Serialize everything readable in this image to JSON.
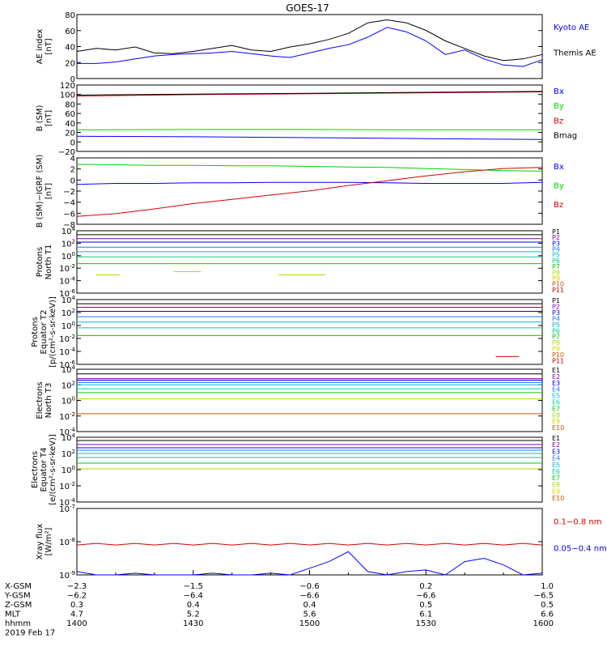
{
  "title": "GOES-17",
  "colors": {
    "black": "#000000",
    "blue": "#0000ff",
    "green": "#00d000",
    "red": "#d00000",
    "p_colors": [
      "#000000",
      "#8800aa",
      "#0000ff",
      "#2277ff",
      "#00bbdd",
      "#00cc99",
      "#00cc00",
      "#aadd00",
      "#ddcc00",
      "#cc5500",
      "#cc0000"
    ],
    "e_colors": [
      "#000000",
      "#8800aa",
      "#0000ff",
      "#2277ff",
      "#00bbdd",
      "#00cc99",
      "#00cc00",
      "#aadd00",
      "#ddcc00",
      "#cc5500"
    ]
  },
  "panels": [
    {
      "id": "ae",
      "ylabel": [
        "AE index",
        "[nT]"
      ],
      "yticks": [
        "80",
        "60",
        "40",
        "20",
        "0"
      ],
      "legend": [
        {
          "text": "Kyoto AE",
          "color": "#0000ff"
        },
        {
          "text": "Themis AE",
          "color": "#000000"
        }
      ]
    },
    {
      "id": "bsm",
      "ylabel": [
        "B (SM)",
        "[nT]"
      ],
      "yticks": [
        "120",
        "100",
        "80",
        "60",
        "40",
        "20",
        "0",
        "−20"
      ],
      "legend": [
        {
          "text": "Bx",
          "color": "#0000ff"
        },
        {
          "text": "By",
          "color": "#00d000"
        },
        {
          "text": "Bz",
          "color": "#d00000"
        },
        {
          "text": "Bmag",
          "color": "#000000"
        }
      ]
    },
    {
      "id": "bigrf",
      "ylabel": [
        "B (SM)−IGRF (SM)",
        "[nT]"
      ],
      "yticks": [
        "4",
        "2",
        "0",
        "−2",
        "−4",
        "−6",
        "−8"
      ],
      "legend": [
        {
          "text": "Bx",
          "color": "#0000ff"
        },
        {
          "text": "By",
          "color": "#00d000"
        },
        {
          "text": "Bz",
          "color": "#d00000"
        }
      ]
    },
    {
      "id": "pn",
      "ylabel": [
        "Protons",
        "North T1"
      ],
      "yticks": [
        "10^4",
        "10^2",
        "10^0",
        "10^-2",
        "10^-4",
        "10^-6"
      ],
      "legend": [
        "P1",
        "P2",
        "P3",
        "P4",
        "P5",
        "P6",
        "P7",
        "P8",
        "P9",
        "P10",
        "P11"
      ]
    },
    {
      "id": "pe",
      "ylabel": [
        "Protons",
        "Equator T2",
        "[p/(cm²-s-sr-keV)]"
      ],
      "yticks": [
        "10^4",
        "10^2",
        "10^0",
        "10^-2",
        "10^-4",
        "10^-6"
      ],
      "legend": [
        "P1",
        "P2",
        "P3",
        "P4",
        "P5",
        "P6",
        "P7",
        "P8",
        "P9",
        "P10",
        "P11"
      ]
    },
    {
      "id": "en",
      "ylabel": [
        "Electrons",
        "North T3"
      ],
      "yticks": [
        "10^4",
        "10^2",
        "10^0",
        "10^-2",
        "10^-4"
      ],
      "legend": [
        "E1",
        "E2",
        "E3",
        "E4",
        "E5",
        "E6",
        "E7",
        "E8",
        "E9",
        "E10"
      ]
    },
    {
      "id": "ee",
      "ylabel": [
        "Electrons",
        "Equator T4",
        "[e/(cm²-s-sr-keV)]"
      ],
      "yticks": [
        "10^4",
        "10^2",
        "10^0",
        "10^-2",
        "10^-4"
      ],
      "legend": [
        "E1",
        "E2",
        "E3",
        "E4",
        "E5",
        "E6",
        "E7",
        "E8",
        "E9",
        "E10"
      ]
    },
    {
      "id": "xray",
      "ylabel": [
        "Xray flux",
        "[W/m²]"
      ],
      "yticks": [
        "10^-7",
        "10^-8",
        "10^-9"
      ],
      "legend": [
        {
          "text": "0.1−0.8 nm",
          "color": "#d00000"
        },
        {
          "text": "0.05−0.4 nm",
          "color": "#0000ff"
        }
      ]
    }
  ],
  "xaxis": {
    "rows": [
      {
        "label": "X-GSM",
        "values": [
          "−2.3",
          "−1.5",
          "−0.6",
          "0.2",
          "1.0"
        ]
      },
      {
        "label": "Y-GSM",
        "values": [
          "−6.2",
          "−6.4",
          "−6.6",
          "−6.6",
          "−6.5"
        ]
      },
      {
        "label": "Z-GSM",
        "values": [
          "0.3",
          "0.4",
          "0.4",
          "0.5",
          "0.5"
        ]
      },
      {
        "label": "MLT",
        "values": [
          "4.7",
          "5.2",
          "5.6",
          "6.1",
          "6.6"
        ]
      },
      {
        "label": "hhmm",
        "values": [
          "1400",
          "1430",
          "1500",
          "1530",
          "1600"
        ]
      }
    ],
    "date": "2019 Feb 17"
  },
  "chart_data": [
    {
      "type": "line",
      "panel": "ae",
      "x_minutes": [
        0,
        5,
        10,
        15,
        20,
        25,
        30,
        35,
        40,
        45,
        50,
        55,
        60,
        65,
        70,
        75,
        80,
        85,
        90,
        95,
        100,
        105,
        110,
        115,
        120
      ],
      "ylim": [
        0,
        85
      ],
      "series": [
        {
          "name": "Kyoto AE",
          "color": "#0000ff",
          "values": [
            20,
            20,
            22,
            26,
            30,
            32,
            33,
            34,
            36,
            33,
            30,
            28,
            34,
            40,
            45,
            55,
            68,
            62,
            50,
            32,
            38,
            26,
            18,
            16,
            25
          ]
        },
        {
          "name": "Themis AE",
          "color": "#000000",
          "values": [
            36,
            40,
            38,
            42,
            34,
            33,
            36,
            40,
            44,
            38,
            36,
            42,
            46,
            52,
            60,
            74,
            78,
            74,
            64,
            50,
            40,
            30,
            24,
            26,
            32
          ]
        }
      ]
    },
    {
      "type": "line",
      "panel": "bsm",
      "x_minutes": [
        0,
        30,
        60,
        90,
        120
      ],
      "ylim": [
        -25,
        120
      ],
      "series": [
        {
          "name": "Bx",
          "color": "#0000ff",
          "values": [
            8,
            7,
            5,
            3,
            1
          ]
        },
        {
          "name": "By",
          "color": "#00d000",
          "values": [
            22,
            23,
            23,
            22,
            22
          ]
        },
        {
          "name": "Bz",
          "color": "#d00000",
          "values": [
            96,
            99,
            101,
            103,
            105
          ]
        },
        {
          "name": "Bmag",
          "color": "#000000",
          "values": [
            98,
            100,
            102,
            104,
            106
          ]
        }
      ]
    },
    {
      "type": "line",
      "panel": "bigrf",
      "x_minutes": [
        0,
        10,
        20,
        30,
        40,
        50,
        60,
        70,
        80,
        90,
        100,
        110,
        120
      ],
      "ylim": [
        -8.5,
        4
      ],
      "series": [
        {
          "name": "Bx",
          "color": "#0000ff",
          "values": [
            -1.0,
            -0.8,
            -0.8,
            -0.7,
            -0.7,
            -0.6,
            -0.6,
            -0.6,
            -0.7,
            -0.8,
            -0.8,
            -0.8,
            -0.6
          ]
        },
        {
          "name": "By",
          "color": "#00d000",
          "values": [
            2.8,
            2.7,
            2.6,
            2.6,
            2.5,
            2.5,
            2.4,
            2.3,
            2.2,
            2.0,
            1.8,
            1.6,
            1.5
          ]
        },
        {
          "name": "Bz",
          "color": "#d00000",
          "values": [
            -7.0,
            -6.5,
            -5.6,
            -4.6,
            -3.8,
            -3.0,
            -2.2,
            -1.2,
            -0.3,
            0.6,
            1.4,
            2.0,
            2.2
          ]
        }
      ]
    },
    {
      "type": "line",
      "panel": "pn",
      "log": true,
      "ylim_exp": [
        -7,
        4
      ],
      "x_minutes": [
        0,
        120
      ],
      "series": [
        {
          "name": "P1",
          "values": [
            3.3,
            3.3
          ]
        },
        {
          "name": "P2",
          "values": [
            2.6,
            2.6
          ]
        },
        {
          "name": "P3",
          "values": [
            2.0,
            2.0
          ]
        },
        {
          "name": "P4",
          "values": [
            1.1,
            1.1
          ]
        },
        {
          "name": "P5",
          "values": [
            0.3,
            0.3
          ]
        },
        {
          "name": "P6",
          "values": [
            -0.6,
            -0.6
          ]
        },
        {
          "name": "P7",
          "values": [
            -1.8,
            -1.8
          ]
        },
        {
          "name": "P8",
          "values": [
            -3.5,
            -3.5
          ],
          "segments": [
            [
              5,
              11
            ],
            [
              25,
              32
            ],
            [
              52,
              64
            ]
          ]
        }
      ]
    },
    {
      "type": "line",
      "panel": "pe",
      "log": true,
      "ylim_exp": [
        -7,
        4
      ],
      "x_minutes": [
        0,
        120
      ],
      "series": [
        {
          "name": "P1",
          "values": [
            3.3,
            3.3
          ]
        },
        {
          "name": "P2",
          "values": [
            2.7,
            2.7
          ]
        },
        {
          "name": "P3",
          "values": [
            2.0,
            2.0
          ]
        },
        {
          "name": "P4",
          "values": [
            1.1,
            1.1
          ]
        },
        {
          "name": "P5",
          "values": [
            0.2,
            0.2
          ]
        },
        {
          "name": "P6",
          "values": [
            -0.8,
            -0.8
          ]
        },
        {
          "name": "P7",
          "values": [
            -2.1,
            -2.1
          ]
        },
        {
          "name": "P11",
          "values": [
            -5.4,
            -5.4
          ],
          "segments": [
            [
              108,
              114
            ]
          ]
        }
      ]
    },
    {
      "type": "line",
      "panel": "en",
      "log": true,
      "ylim_exp": [
        -4,
        4
      ],
      "x_minutes": [
        0,
        120
      ],
      "series": [
        {
          "name": "E1",
          "values": [
            3.4,
            3.4
          ]
        },
        {
          "name": "E2",
          "values": [
            2.8,
            2.8
          ]
        },
        {
          "name": "E3",
          "values": [
            2.6,
            2.6
          ]
        },
        {
          "name": "E4",
          "values": [
            2.3,
            2.3
          ]
        },
        {
          "name": "E5",
          "values": [
            2.0,
            2.0
          ]
        },
        {
          "name": "E6",
          "values": [
            1.5,
            1.5
          ]
        },
        {
          "name": "E7",
          "values": [
            1.0,
            1.0
          ]
        },
        {
          "name": "E8",
          "values": [
            0.2,
            0.2
          ]
        },
        {
          "name": "E10",
          "values": [
            -1.7,
            -1.7
          ]
        }
      ]
    },
    {
      "type": "line",
      "panel": "ee",
      "log": true,
      "ylim_exp": [
        -4,
        4
      ],
      "x_minutes": [
        0,
        120
      ],
      "series": [
        {
          "name": "E1",
          "values": [
            3.6,
            3.6
          ]
        },
        {
          "name": "E2",
          "values": [
            3.1,
            3.1
          ]
        },
        {
          "name": "E3",
          "values": [
            2.7,
            2.7
          ]
        },
        {
          "name": "E4",
          "values": [
            2.4,
            2.4
          ]
        },
        {
          "name": "E5",
          "values": [
            2.0,
            2.0
          ]
        },
        {
          "name": "E6",
          "values": [
            1.5,
            1.5
          ]
        },
        {
          "name": "E7",
          "values": [
            0.8,
            0.8
          ]
        },
        {
          "name": "E8",
          "values": [
            0.1,
            0.1
          ]
        }
      ]
    },
    {
      "type": "line",
      "panel": "xray",
      "log": true,
      "ylim_exp": [
        -9,
        -7
      ],
      "x_minutes": [
        0,
        5,
        10,
        15,
        20,
        25,
        30,
        35,
        40,
        45,
        50,
        55,
        60,
        65,
        70,
        75,
        80,
        85,
        90,
        95,
        100,
        105,
        110,
        115,
        120
      ],
      "series": [
        {
          "name": "0.1−0.8 nm",
          "color": "#d00000",
          "values": [
            -8.1,
            -8.05,
            -8.1,
            -8.05,
            -8.1,
            -8.05,
            -8.1,
            -8.05,
            -8.1,
            -8.05,
            -8.1,
            -8.05,
            -8.1,
            -8.05,
            -8.1,
            -8.05,
            -8.1,
            -8.05,
            -8.1,
            -8.05,
            -8.1,
            -8.05,
            -8.1,
            -8.05,
            -8.1
          ]
        },
        {
          "name": "0.05−0.4 nm",
          "color": "#0000ff",
          "values": [
            -8.9,
            -9.0,
            -9.0,
            -8.95,
            -9.0,
            -9.0,
            -9.0,
            -8.95,
            -9.0,
            -9.0,
            -8.95,
            -9.0,
            -8.8,
            -8.6,
            -8.3,
            -8.9,
            -9.0,
            -8.9,
            -8.85,
            -9.0,
            -8.6,
            -8.5,
            -8.7,
            -9.0,
            -8.95
          ]
        }
      ]
    }
  ]
}
